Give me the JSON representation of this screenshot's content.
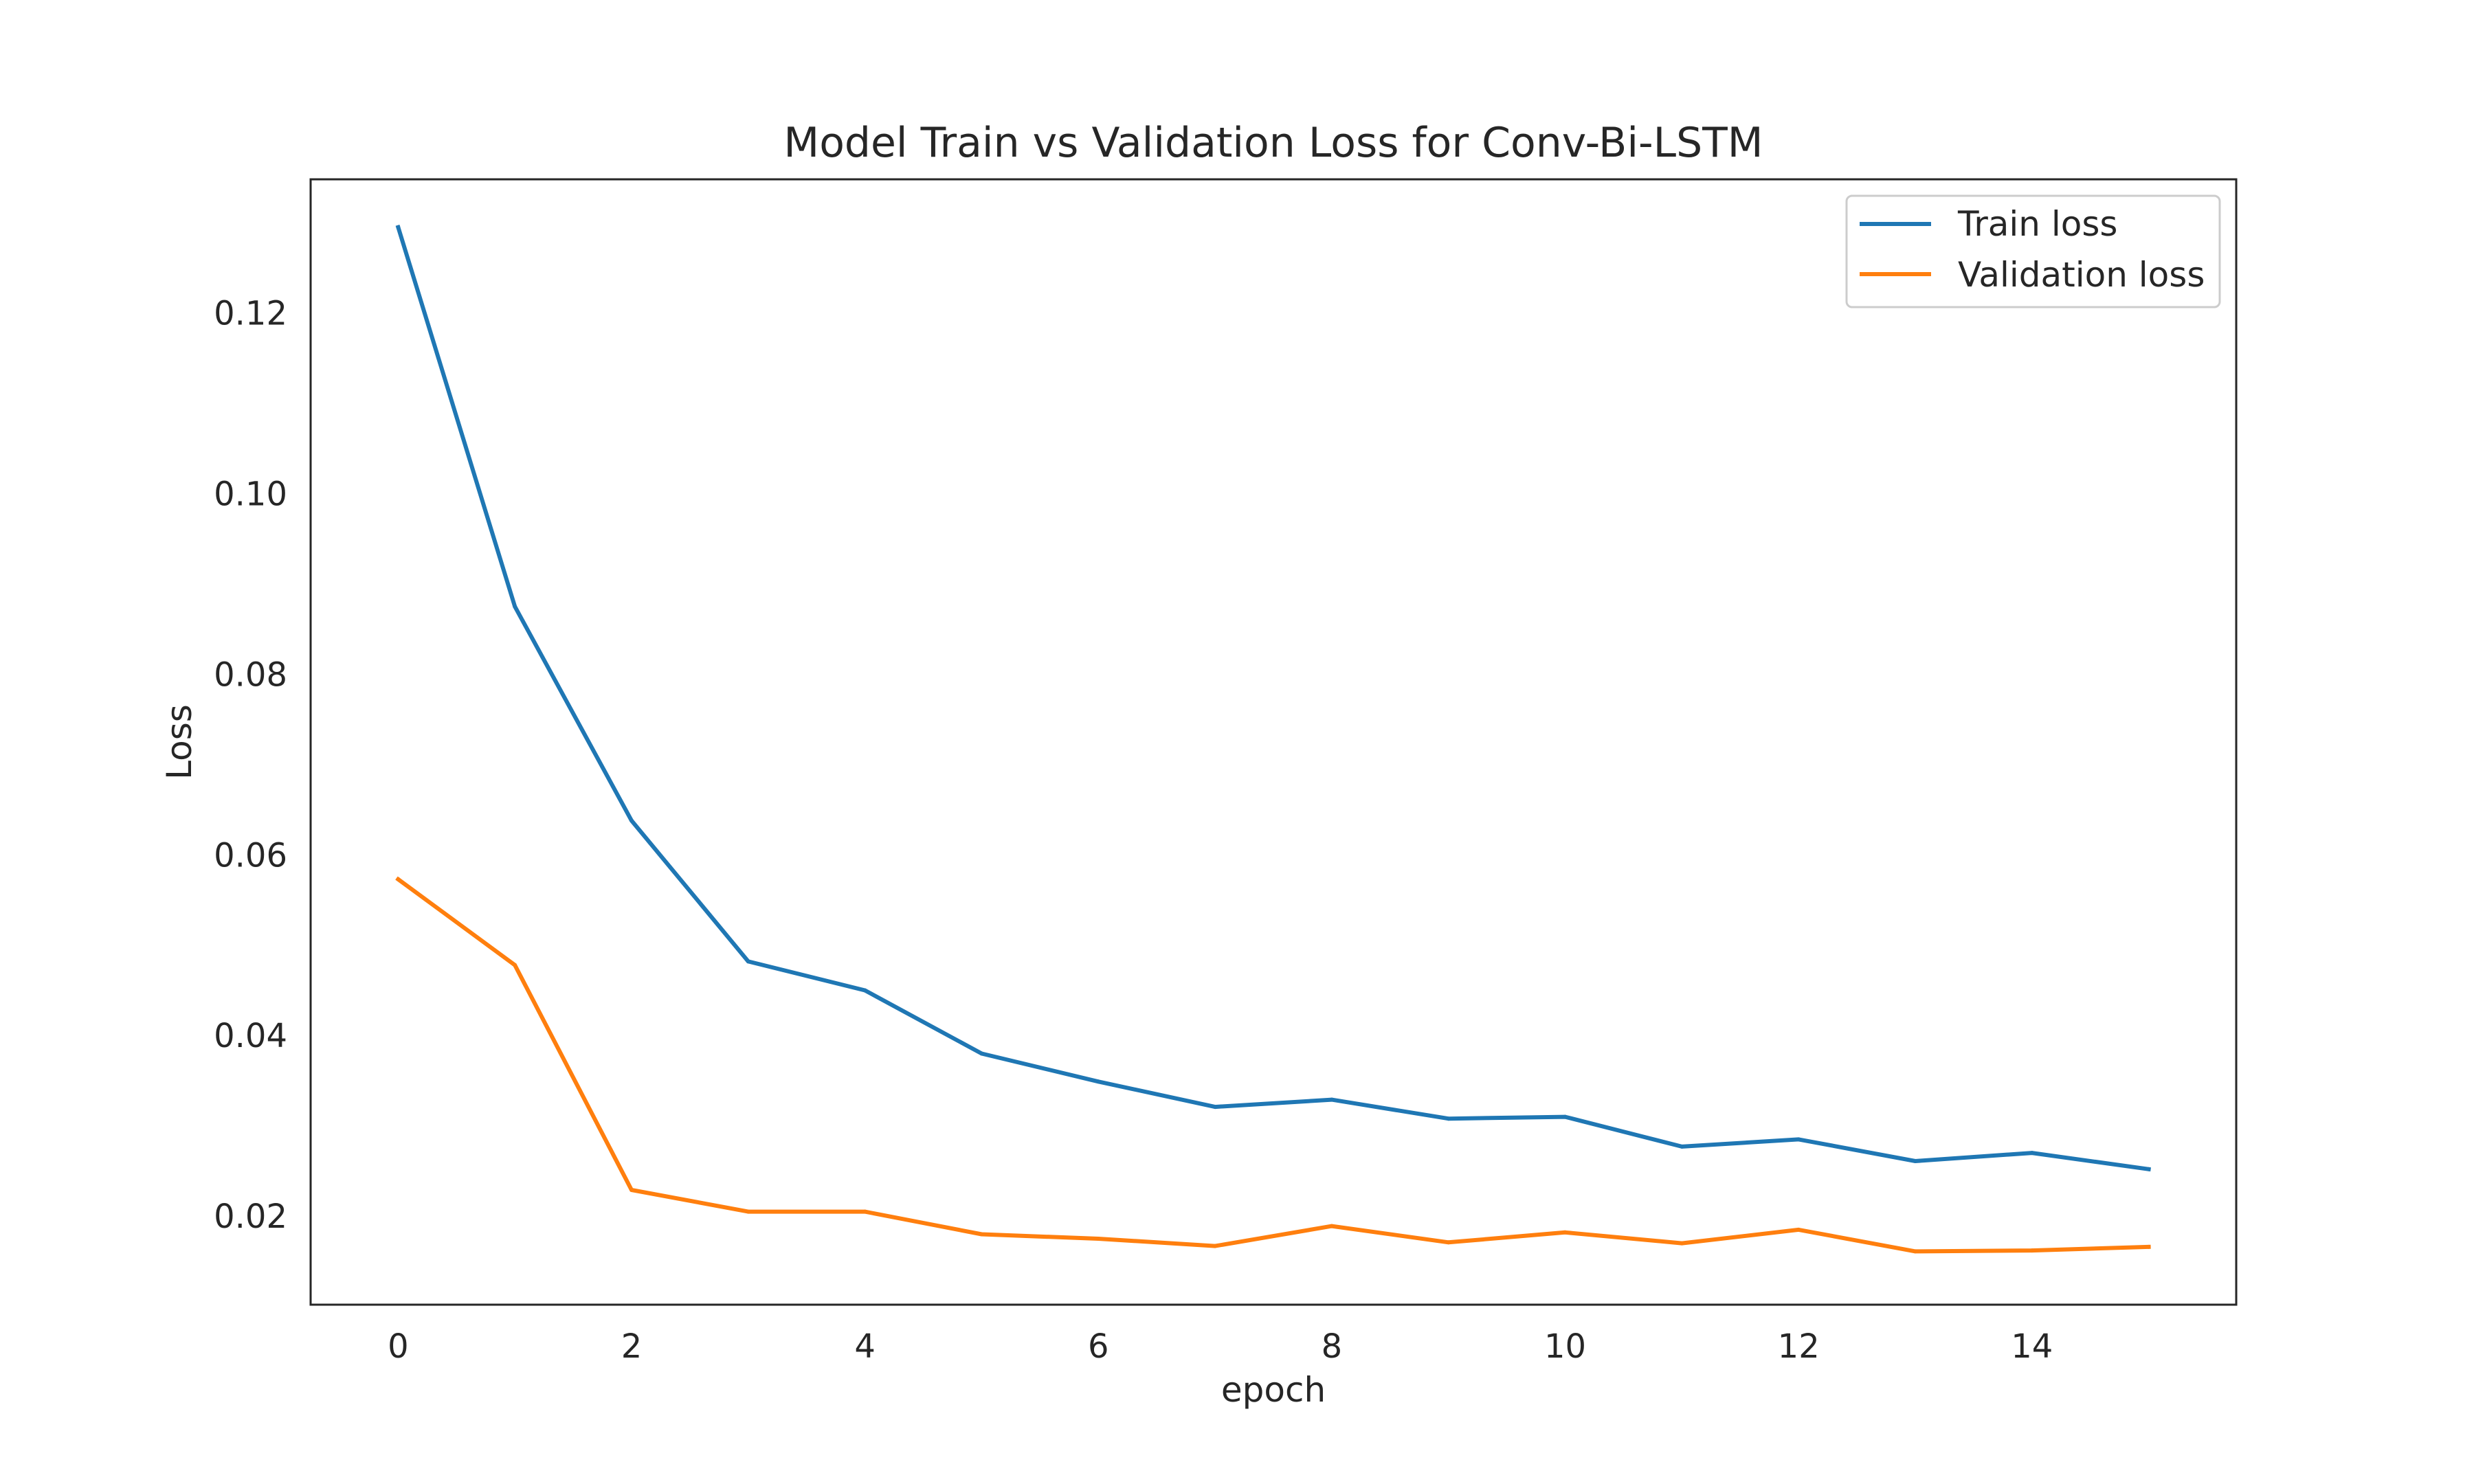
{
  "chart_data": {
    "type": "line",
    "title": "Model Train vs Validation Loss for Conv-Bi-LSTM",
    "xlabel": "epoch",
    "ylabel": "Loss",
    "xlim": [
      -0.75,
      15.75
    ],
    "ylim": [
      0.0102,
      0.1348
    ],
    "xticks": [
      0,
      2,
      4,
      6,
      8,
      10,
      12,
      14
    ],
    "xtick_labels": [
      "0",
      "2",
      "4",
      "6",
      "8",
      "10",
      "12",
      "14"
    ],
    "yticks": [
      0.02,
      0.04,
      0.06,
      0.08,
      0.1,
      0.12
    ],
    "ytick_labels": [
      "0.02",
      "0.04",
      "0.06",
      "0.08",
      "0.10",
      "0.12"
    ],
    "x": [
      0,
      1,
      2,
      3,
      4,
      5,
      6,
      7,
      8,
      9,
      10,
      11,
      12,
      13,
      14,
      15
    ],
    "series": [
      {
        "name": "Train loss",
        "color": "#1f77b4",
        "values": [
          0.1295,
          0.0875,
          0.0638,
          0.0482,
          0.045,
          0.038,
          0.0349,
          0.0321,
          0.0329,
          0.0308,
          0.031,
          0.0277,
          0.0285,
          0.0261,
          0.027,
          0.0252
        ]
      },
      {
        "name": "Validation loss",
        "color": "#ff7f0e",
        "values": [
          0.0573,
          0.0478,
          0.0229,
          0.0205,
          0.0205,
          0.018,
          0.0175,
          0.0167,
          0.0189,
          0.0171,
          0.0182,
          0.017,
          0.0185,
          0.0161,
          0.0162,
          0.0166
        ]
      }
    ],
    "grid": false,
    "legend_position": "top-right"
  }
}
